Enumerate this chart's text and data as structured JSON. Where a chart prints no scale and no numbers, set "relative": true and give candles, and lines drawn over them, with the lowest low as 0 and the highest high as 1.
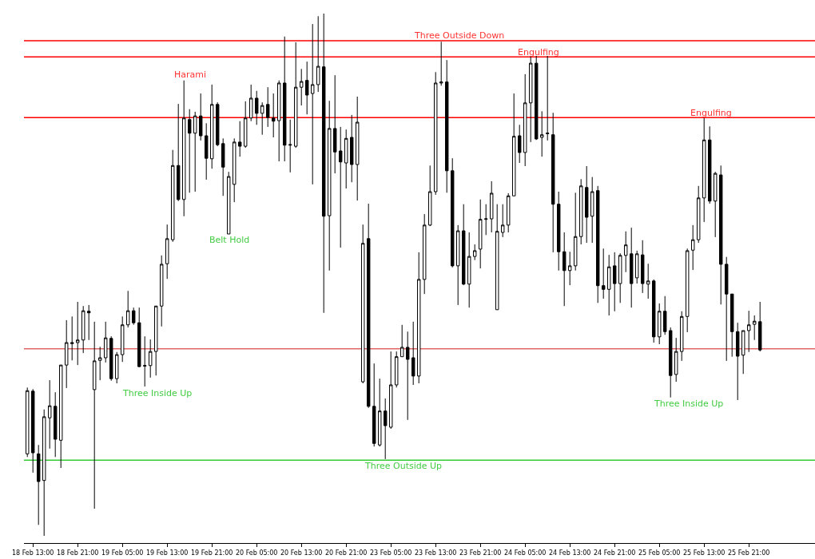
{
  "chart_data": {
    "type": "candlestick",
    "relative": true,
    "grid": false,
    "legend": false,
    "categories": [
      null,
      "18 Feb 13:00",
      null,
      null,
      null,
      null,
      null,
      null,
      null,
      "18 Feb 21:00",
      null,
      null,
      null,
      null,
      null,
      null,
      null,
      "19 Feb 05:00",
      null,
      null,
      null,
      null,
      null,
      null,
      null,
      "19 Feb 13:00",
      null,
      null,
      null,
      null,
      null,
      null,
      null,
      "19 Feb 21:00",
      null,
      null,
      null,
      null,
      null,
      null,
      null,
      "20 Feb 05:00",
      null,
      null,
      null,
      null,
      null,
      null,
      null,
      "20 Feb 13:00",
      null,
      null,
      null,
      null,
      null,
      null,
      null,
      "20 Feb 21:00",
      null,
      null,
      null,
      null,
      null,
      null,
      null,
      "23 Feb 05:00",
      null,
      null,
      null,
      null,
      null,
      null,
      null,
      "23 Feb 13:00",
      null,
      null,
      null,
      null,
      null,
      null,
      null,
      "23 Feb 21:00",
      null,
      null,
      null,
      null,
      null,
      null,
      null,
      "24 Feb 05:00",
      null,
      null,
      null,
      null,
      null,
      null,
      null,
      "24 Feb 13:00",
      null,
      null,
      null,
      null,
      null,
      null,
      null,
      "24 Feb 21:00",
      null,
      null,
      null,
      null,
      null,
      null,
      null,
      "25 Feb 05:00",
      null,
      null,
      null,
      null,
      null,
      null,
      null,
      "25 Feb 13:00",
      null,
      null,
      null,
      null,
      null,
      null,
      null,
      "25 Feb 21:00",
      null,
      null
    ],
    "ohlc": [
      [
        0.157,
        0.284,
        0.151,
        0.278
      ],
      [
        0.277,
        0.281,
        0.121,
        0.159
      ],
      [
        0.157,
        0.174,
        0.021,
        0.104
      ],
      [
        0.106,
        0.242,
        0,
        0.228
      ],
      [
        0.226,
        0.298,
        0.167,
        0.249
      ],
      [
        0.248,
        0.275,
        0.151,
        0.185
      ],
      [
        0.183,
        0.327,
        0.13,
        0.327
      ],
      [
        0.327,
        0.413,
        0.283,
        0.37
      ],
      [
        0.368,
        0.42,
        0.336,
        0.37
      ],
      [
        0.37,
        0.448,
        0.327,
        0.375
      ],
      [
        0.375,
        0.44,
        0.35,
        0.431
      ],
      [
        0.43,
        0.442,
        0.375,
        0.427
      ],
      [
        0.28,
        0.41,
        0.052,
        0.335
      ],
      [
        0.336,
        0.362,
        0.298,
        0.341
      ],
      [
        0.341,
        0.41,
        0.332,
        0.379
      ],
      [
        0.378,
        0.382,
        0.297,
        0.301
      ],
      [
        0.301,
        0.352,
        0.292,
        0.347
      ],
      [
        0.347,
        0.42,
        0.333,
        0.404
      ],
      [
        0.404,
        0.469,
        0.399,
        0.431
      ],
      [
        0.431,
        0.437,
        0.404,
        0.408
      ],
      [
        0.408,
        0.437,
        0.323,
        0.324
      ],
      [
        0.325,
        0.382,
        0.286,
        0.326
      ],
      [
        0.326,
        0.376,
        0.303,
        0.353
      ],
      [
        0.353,
        0.44,
        0.307,
        0.44
      ],
      [
        0.44,
        0.537,
        0.401,
        0.52
      ],
      [
        0.521,
        0.596,
        0.492,
        0.569
      ],
      [
        0.567,
        0.739,
        0.563,
        0.709
      ],
      [
        0.709,
        0.827,
        0.641,
        0.644
      ],
      [
        0.644,
        0.872,
        0.612,
        0.8
      ],
      [
        0.797,
        0.817,
        0.657,
        0.771
      ],
      [
        0.771,
        0.812,
        0.659,
        0.804
      ],
      [
        0.804,
        0.847,
        0.757,
        0.766
      ],
      [
        0.766,
        0.79,
        0.682,
        0.723
      ],
      [
        0.722,
        0.864,
        0.703,
        0.826
      ],
      [
        0.826,
        0.83,
        0.746,
        0.749
      ],
      [
        0.751,
        0.761,
        0.651,
        0.706
      ],
      [
        0.578,
        0.697,
        0.578,
        0.688
      ],
      [
        0.673,
        0.761,
        0.639,
        0.754
      ],
      [
        0.754,
        0.794,
        0.726,
        0.746
      ],
      [
        0.746,
        0.832,
        0.743,
        0.8
      ],
      [
        0.8,
        0.864,
        0.794,
        0.838
      ],
      [
        0.838,
        0.852,
        0.787,
        0.809
      ],
      [
        0.809,
        0.83,
        0.768,
        0.824
      ],
      [
        0.826,
        0.859,
        0.783,
        0.801
      ],
      [
        0.8,
        0.847,
        0.763,
        0.794
      ],
      [
        0.795,
        0.872,
        0.717,
        0.867
      ],
      [
        0.867,
        0.956,
        0.717,
        0.748
      ],
      [
        0.748,
        0.797,
        0.696,
        0.749
      ],
      [
        0.746,
        0.945,
        0.743,
        0.859
      ],
      [
        0.859,
        0.894,
        0.824,
        0.87
      ],
      [
        0.872,
        0.908,
        0.807,
        0.844
      ],
      [
        0.847,
        0.98,
        0.673,
        0.864
      ],
      [
        0.864,
        0.995,
        0.85,
        0.899
      ],
      [
        0.898,
        1,
        0.427,
        0.612
      ],
      [
        0.613,
        0.833,
        0.508,
        0.78
      ],
      [
        0.78,
        0.882,
        0.694,
        0.735
      ],
      [
        0.737,
        0.783,
        0.552,
        0.716
      ],
      [
        0.714,
        0.778,
        0.665,
        0.761
      ],
      [
        0.763,
        0.806,
        0.677,
        0.711
      ],
      [
        0.711,
        0.841,
        0.642,
        0.792
      ],
      [
        0.295,
        0.596,
        0.292,
        0.56
      ],
      [
        0.569,
        0.636,
        0.245,
        0.248
      ],
      [
        0.248,
        0.33,
        0.171,
        0.177
      ],
      [
        0.174,
        0.301,
        0.171,
        0.239
      ],
      [
        0.239,
        0.263,
        0.147,
        0.211
      ],
      [
        0.208,
        0.353,
        0.205,
        0.289
      ],
      [
        0.289,
        0.353,
        0.284,
        0.343
      ],
      [
        0.343,
        0.404,
        0.343,
        0.361
      ],
      [
        0.361,
        0.391,
        0.222,
        0.338
      ],
      [
        0.341,
        0.41,
        0.289,
        0.306
      ],
      [
        0.306,
        0.543,
        0.292,
        0.491
      ],
      [
        0.491,
        0.616,
        0.463,
        0.595
      ],
      [
        0.595,
        0.709,
        0.593,
        0.659
      ],
      [
        0.659,
        0.888,
        0.653,
        0.867
      ],
      [
        0.867,
        0.946,
        0.862,
        0.869
      ],
      [
        0.869,
        0.911,
        0.657,
        0.699
      ],
      [
        0.699,
        0.723,
        0.514,
        0.517
      ],
      [
        0.517,
        0.595,
        0.442,
        0.584
      ],
      [
        0.584,
        0.635,
        0.48,
        0.482
      ],
      [
        0.482,
        0.581,
        0.437,
        0.535
      ],
      [
        0.535,
        0.558,
        0.528,
        0.546
      ],
      [
        0.549,
        0.644,
        0.512,
        0.606
      ],
      [
        0.606,
        0.635,
        0.576,
        0.607
      ],
      [
        0.607,
        0.679,
        0.581,
        0.656
      ],
      [
        0.433,
        0.635,
        0.433,
        0.583
      ],
      [
        0.581,
        0.635,
        0.572,
        0.595
      ],
      [
        0.595,
        0.656,
        0.581,
        0.651
      ],
      [
        0.651,
        0.847,
        0.651,
        0.765
      ],
      [
        0.766,
        0.787,
        0.714,
        0.734
      ],
      [
        0.734,
        0.884,
        0.708,
        0.829
      ],
      [
        0.829,
        0.919,
        0.754,
        0.905
      ],
      [
        0.905,
        0.919,
        0.758,
        0.76
      ],
      [
        0.763,
        0.813,
        0.726,
        0.768
      ],
      [
        0.77,
        0.919,
        0.757,
        0.771
      ],
      [
        0.768,
        0.81,
        0.543,
        0.635
      ],
      [
        0.635,
        0.659,
        0.508,
        0.544
      ],
      [
        0.544,
        0.581,
        0.44,
        0.508
      ],
      [
        0.508,
        0.544,
        0.48,
        0.517
      ],
      [
        0.517,
        0.657,
        0.508,
        0.573
      ],
      [
        0.573,
        0.683,
        0.558,
        0.67
      ],
      [
        0.667,
        0.708,
        0.561,
        0.61
      ],
      [
        0.612,
        0.687,
        0.561,
        0.659
      ],
      [
        0.661,
        0.67,
        0.446,
        0.479
      ],
      [
        0.479,
        0.55,
        0.454,
        0.472
      ],
      [
        0.472,
        0.538,
        0.422,
        0.515
      ],
      [
        0.517,
        0.543,
        0.43,
        0.483
      ],
      [
        0.483,
        0.541,
        0.446,
        0.537
      ],
      [
        0.537,
        0.583,
        0.505,
        0.557
      ],
      [
        0.54,
        0.59,
        0.437,
        0.483
      ],
      [
        0.494,
        0.546,
        0.483,
        0.54
      ],
      [
        0.538,
        0.566,
        0.465,
        0.483
      ],
      [
        0.482,
        0.521,
        0.454,
        0.488
      ],
      [
        0.488,
        0.491,
        0.37,
        0.381
      ],
      [
        0.381,
        0.445,
        0.367,
        0.43
      ],
      [
        0.43,
        0.459,
        0.385,
        0.391
      ],
      [
        0.393,
        0.399,
        0.265,
        0.307
      ],
      [
        0.309,
        0.379,
        0.295,
        0.353
      ],
      [
        0.353,
        0.43,
        0.335,
        0.42
      ],
      [
        0.42,
        0.55,
        0.39,
        0.546
      ],
      [
        0.547,
        0.595,
        0.509,
        0.567
      ],
      [
        0.567,
        0.67,
        0.561,
        0.647
      ],
      [
        0.647,
        0.8,
        0.601,
        0.758
      ],
      [
        0.758,
        0.784,
        0.636,
        0.641
      ],
      [
        0.641,
        0.697,
        0.572,
        0.694
      ],
      [
        0.691,
        0.709,
        0.443,
        0.52
      ],
      [
        0.52,
        0.534,
        0.335,
        0.463
      ],
      [
        0.463,
        0.463,
        0.343,
        0.391
      ],
      [
        0.391,
        0.408,
        0.26,
        0.344
      ],
      [
        0.346,
        0.393,
        0.31,
        0.393
      ],
      [
        0.393,
        0.431,
        0.352,
        0.404
      ],
      [
        0.405,
        0.422,
        0.375,
        0.411
      ],
      [
        0.41,
        0.448,
        0.353,
        0.356
      ]
    ],
    "ref_lines": [
      {
        "axis": "y",
        "value": 0.358,
        "color": "#e06666"
      },
      {
        "axis": "y",
        "value": 0.948,
        "color": "#ff0000"
      },
      {
        "axis": "y",
        "value": 0.917,
        "color": "#ff0000"
      },
      {
        "axis": "y",
        "value": 0.801,
        "color": "#ff0000"
      },
      {
        "axis": "y",
        "value": 0.145,
        "color": "#33cc33"
      }
    ],
    "annotations": [
      "Harami",
      "Belt Hold",
      "Three Inside Up",
      "Three Outside Down",
      "Engulfing",
      "Engulfing",
      "Three Outside Up",
      "Three Inside Up"
    ]
  }
}
